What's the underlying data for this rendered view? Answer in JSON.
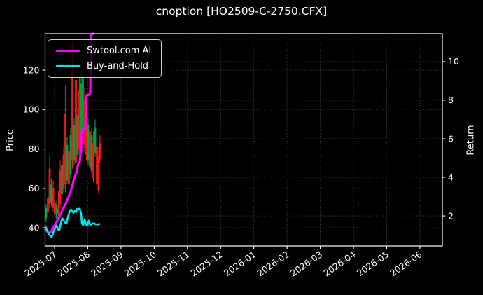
{
  "title": "cnoption [HO2509-C-2750.CFX]",
  "legend": {
    "items": [
      {
        "label": "Swtool.com AI",
        "color": "#ff00ff"
      },
      {
        "label": "Buy-and-Hold",
        "color": "#00e5e5"
      }
    ]
  },
  "chart_data": {
    "type": "candlestick+line",
    "title": "cnoption [HO2509-C-2750.CFX]",
    "background": "#000000",
    "text_color": "#ffffff",
    "grid": {
      "on": true,
      "style": "dotted",
      "color": "rgba(255,255,255,0.3)"
    },
    "legend_position": "upper-left",
    "x_axis": {
      "unit": "month_offset_from_2025-07",
      "tick_labels": [
        "2025-07",
        "2025-08",
        "2025-09",
        "2025-10",
        "2025-11",
        "2025-12",
        "2026-01",
        "2026-02",
        "2026-03",
        "2026-04",
        "2026-05",
        "2026-06"
      ],
      "tick_rotation_deg": -35,
      "xlim_months": [
        -0.285,
        11.676
      ]
    },
    "left_axis": {
      "label": "Price",
      "ticks": [
        40,
        60,
        80,
        100,
        120
      ],
      "ylim": [
        30.8,
        138.5
      ]
    },
    "right_axis": {
      "label": "Return",
      "ticks": [
        2,
        4,
        6,
        8,
        10
      ],
      "ylim": [
        0.44,
        11.45
      ]
    },
    "candles": {
      "axis": "left",
      "up_color": "#00a33e",
      "down_color": "#f21a1a",
      "item_format": [
        "x_month",
        "low",
        "high",
        "body_low",
        "body_high",
        "direction"
      ],
      "items": [
        [
          -0.253,
          43,
          52,
          45,
          50,
          "u"
        ],
        [
          -0.2,
          46,
          57,
          48,
          55,
          "d"
        ],
        [
          -0.148,
          50,
          77,
          52,
          70,
          "d"
        ],
        [
          -0.095,
          51,
          65,
          53,
          62,
          "u"
        ],
        [
          -0.042,
          48,
          64,
          50,
          60,
          "d"
        ],
        [
          0.011,
          46,
          56,
          47,
          53,
          "d"
        ],
        [
          0.063,
          44,
          54,
          45,
          52,
          "u"
        ],
        [
          0.116,
          46,
          59,
          47,
          50,
          "d"
        ],
        [
          0.169,
          50,
          74,
          52,
          69,
          "d"
        ],
        [
          0.221,
          55,
          76,
          57,
          72,
          "u"
        ],
        [
          0.274,
          58,
          81,
          60,
          77,
          "d"
        ],
        [
          0.327,
          58,
          112,
          62,
          98,
          "d"
        ],
        [
          0.379,
          62,
          86,
          64,
          82,
          "u"
        ],
        [
          0.432,
          60,
          84,
          62,
          79,
          "d"
        ],
        [
          0.485,
          65,
          91,
          67,
          87,
          "u"
        ],
        [
          0.537,
          70,
          134,
          74,
          120,
          "d"
        ],
        [
          0.59,
          72,
          96,
          74,
          92,
          "u"
        ],
        [
          0.643,
          70,
          131,
          73,
          115,
          "d"
        ],
        [
          0.695,
          75,
          101,
          77,
          97,
          "u"
        ],
        [
          0.748,
          78,
          117,
          80,
          110,
          "d"
        ],
        [
          0.801,
          80,
          119,
          83,
          113,
          "u"
        ],
        [
          0.854,
          84,
          121,
          87,
          116,
          "u"
        ],
        [
          0.906,
          79,
          111,
          82,
          105,
          "d"
        ],
        [
          0.959,
          74,
          101,
          77,
          95,
          "d"
        ],
        [
          1.012,
          72,
          96,
          74,
          92,
          "u"
        ],
        [
          1.064,
          69,
          94,
          71,
          89,
          "d"
        ],
        [
          1.117,
          67,
          91,
          69,
          87,
          "u"
        ],
        [
          1.17,
          63,
          89,
          65,
          83,
          "d"
        ],
        [
          1.222,
          76,
          95,
          78,
          91,
          "u"
        ],
        [
          1.275,
          60,
          86,
          62,
          81,
          "d"
        ],
        [
          1.328,
          57,
          81,
          59,
          76,
          "d"
        ],
        [
          1.37,
          73,
          87,
          75,
          83,
          "d"
        ]
      ]
    },
    "series": [
      {
        "name": "Swtool.com AI",
        "axis": "right",
        "color": "#ff00ff",
        "width": 3.2,
        "points": [
          [
            -0.274,
            1.3
          ],
          [
            -0.211,
            1.18
          ],
          [
            -0.148,
            1.1
          ],
          [
            -0.084,
            1.25
          ],
          [
            -0.021,
            1.45
          ],
          [
            0.042,
            1.62
          ],
          [
            0.105,
            1.82
          ],
          [
            0.169,
            2.05
          ],
          [
            0.232,
            2.28
          ],
          [
            0.295,
            2.5
          ],
          [
            0.358,
            2.72
          ],
          [
            0.421,
            2.98
          ],
          [
            0.464,
            3.12
          ],
          [
            0.527,
            3.48
          ],
          [
            0.569,
            3.82
          ],
          [
            0.632,
            4.12
          ],
          [
            0.674,
            4.35
          ],
          [
            0.716,
            4.72
          ],
          [
            0.759,
            4.78
          ],
          [
            0.78,
            5.25
          ],
          [
            0.801,
            5.3
          ],
          [
            0.822,
            6.42
          ],
          [
            0.906,
            6.48
          ],
          [
            0.927,
            6.55
          ],
          [
            0.959,
            8.25
          ],
          [
            1.054,
            8.3
          ],
          [
            1.075,
            8.38
          ],
          [
            1.096,
            11.4
          ],
          [
            1.159,
            11.45
          ]
        ]
      },
      {
        "name": "Buy-and-Hold",
        "axis": "right",
        "color": "#00e5e5",
        "width": 2.6,
        "points": [
          [
            -0.274,
            1.45
          ],
          [
            -0.232,
            1.28
          ],
          [
            -0.19,
            1.12
          ],
          [
            -0.126,
            0.95
          ],
          [
            -0.084,
            0.9
          ],
          [
            -0.042,
            1.12
          ],
          [
            0.021,
            1.38
          ],
          [
            0.063,
            1.5
          ],
          [
            0.105,
            1.3
          ],
          [
            0.148,
            1.26
          ],
          [
            0.19,
            1.62
          ],
          [
            0.232,
            1.88
          ],
          [
            0.274,
            1.76
          ],
          [
            0.316,
            1.66
          ],
          [
            0.358,
            1.6
          ],
          [
            0.4,
            1.92
          ],
          [
            0.443,
            2.16
          ],
          [
            0.485,
            2.32
          ],
          [
            0.527,
            2.28
          ],
          [
            0.569,
            2.16
          ],
          [
            0.611,
            2.26
          ],
          [
            0.653,
            2.2
          ],
          [
            0.674,
            2.36
          ],
          [
            0.716,
            2.34
          ],
          [
            0.759,
            2.38
          ],
          [
            0.801,
            2.1
          ],
          [
            0.822,
            1.62
          ],
          [
            0.864,
            1.5
          ],
          [
            0.906,
            1.82
          ],
          [
            0.948,
            1.56
          ],
          [
            0.99,
            1.5
          ],
          [
            1.033,
            1.76
          ],
          [
            1.075,
            1.52
          ],
          [
            1.117,
            1.58
          ],
          [
            1.18,
            1.62
          ],
          [
            1.243,
            1.56
          ],
          [
            1.306,
            1.56
          ],
          [
            1.349,
            1.58
          ]
        ]
      }
    ]
  }
}
